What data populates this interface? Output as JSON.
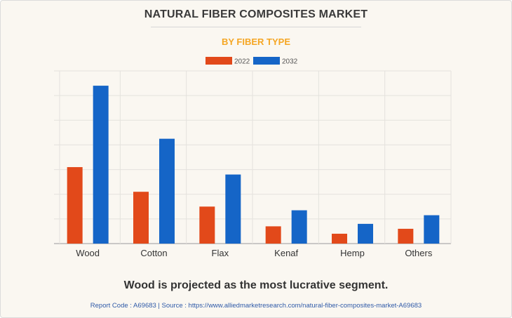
{
  "header": {
    "title": "NATURAL FIBER COMPOSITES MARKET",
    "subtitle": "BY FIBER TYPE"
  },
  "footer": {
    "note": "Wood is projected as the most lucrative segment.",
    "source": "Report Code : A69683  |  Source : https://www.alliedmarketresearch.com/natural-fiber-composites-market-A69683"
  },
  "chart_data": {
    "type": "bar",
    "title": "NATURAL FIBER COMPOSITES MARKET",
    "subtitle": "BY FIBER TYPE",
    "categories": [
      "Wood",
      "Cotton",
      "Flax",
      "Kenaf",
      "Hemp",
      "Others"
    ],
    "series": [
      {
        "name": "2022",
        "color": "#e2491a",
        "values": [
          3.1,
          2.1,
          1.5,
          0.7,
          0.4,
          0.6
        ]
      },
      {
        "name": "2032",
        "color": "#1565c7",
        "values": [
          6.4,
          4.25,
          2.8,
          1.35,
          0.8,
          1.15
        ]
      }
    ],
    "ylim": [
      0,
      7
    ],
    "y_ticks_shown": false,
    "grid": true,
    "legend": "top-center"
  }
}
